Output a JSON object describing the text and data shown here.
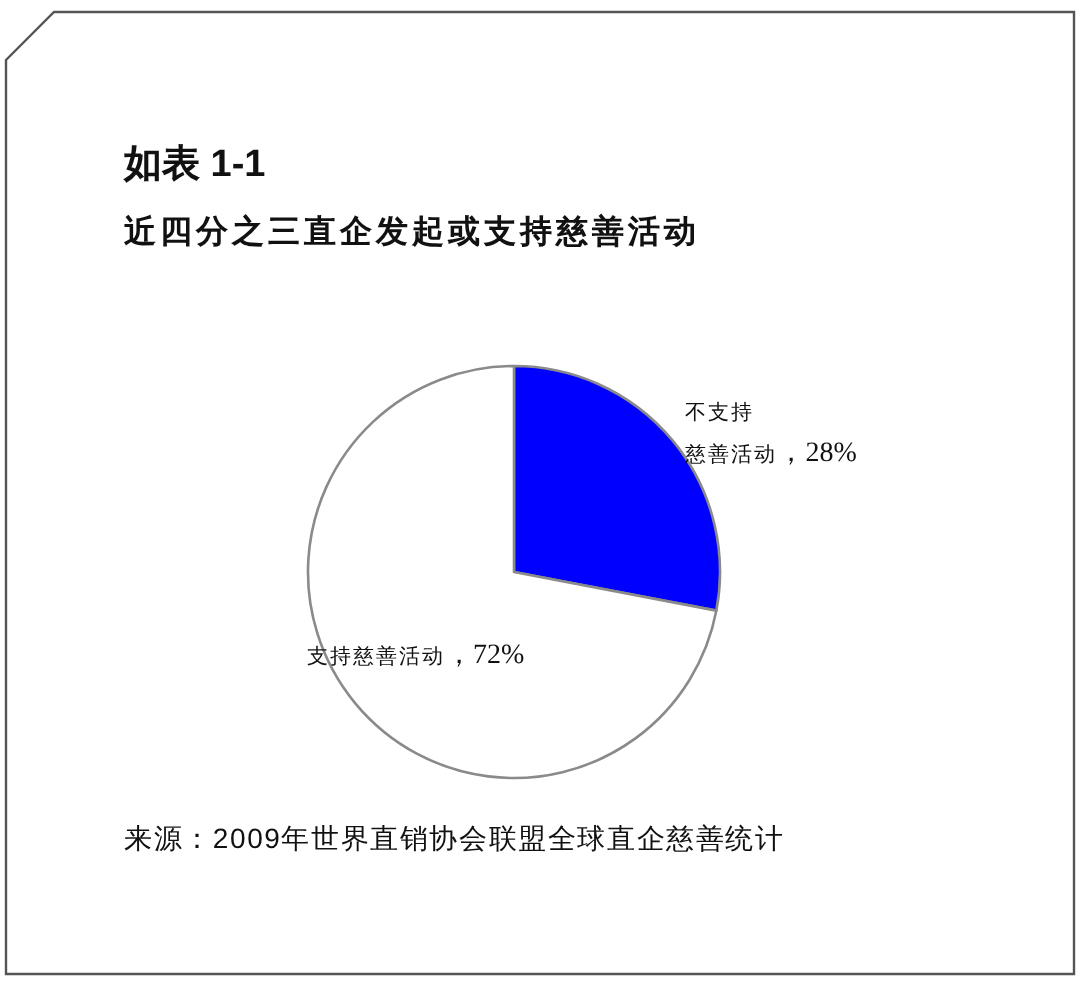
{
  "chart_data": {
    "type": "pie",
    "title": "如表 1-1",
    "subtitle": "近四分之三直企发起或支持慈善活动",
    "categories": [
      "不支持慈善活动",
      "支持慈善活动"
    ],
    "values": [
      28,
      72
    ],
    "colors": [
      "#0000ff",
      "#ffffff"
    ],
    "value_labels": [
      "，28%",
      "，72%"
    ],
    "annotations": [
      "来源：2009年世界直销协会联盟全球直企慈善统计"
    ]
  }
}
